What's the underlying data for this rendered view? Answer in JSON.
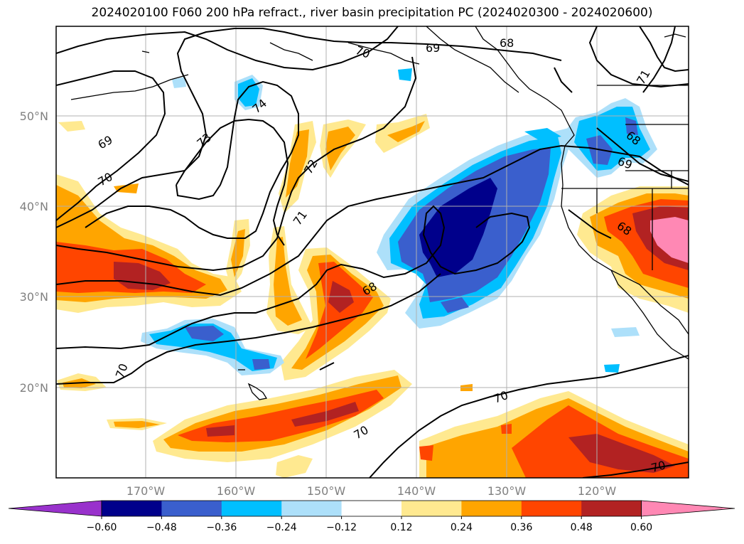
{
  "title": "2024020100 F060 200 hPa refract., river basin precipitation PC (2024020300 - 2024020600)",
  "lat_labels": [
    "50°N",
    "40°N",
    "30°N",
    "20°N"
  ],
  "lon_labels": [
    "170°W",
    "160°W",
    "150°W",
    "140°W",
    "130°W",
    "120°W"
  ],
  "contour_labels": [
    "70",
    "69",
    "68",
    "71",
    "69",
    "70",
    "73",
    "74",
    "72",
    "71",
    "68",
    "68",
    "69",
    "68",
    "70",
    "70",
    "70",
    "70"
  ],
  "colorbar": {
    "ticks": [
      "−0.60",
      "−0.48",
      "−0.36",
      "−0.24",
      "−0.12",
      "0.12",
      "0.24",
      "0.36",
      "0.48",
      "0.60"
    ],
    "colors": [
      "#9932cc",
      "#00008b",
      "#3a5fcd",
      "#00bfff",
      "#ade0fa",
      "#ffffff",
      "#ffe990",
      "#ffa500",
      "#ff4500",
      "#b22222",
      "#ff88b4"
    ]
  }
}
